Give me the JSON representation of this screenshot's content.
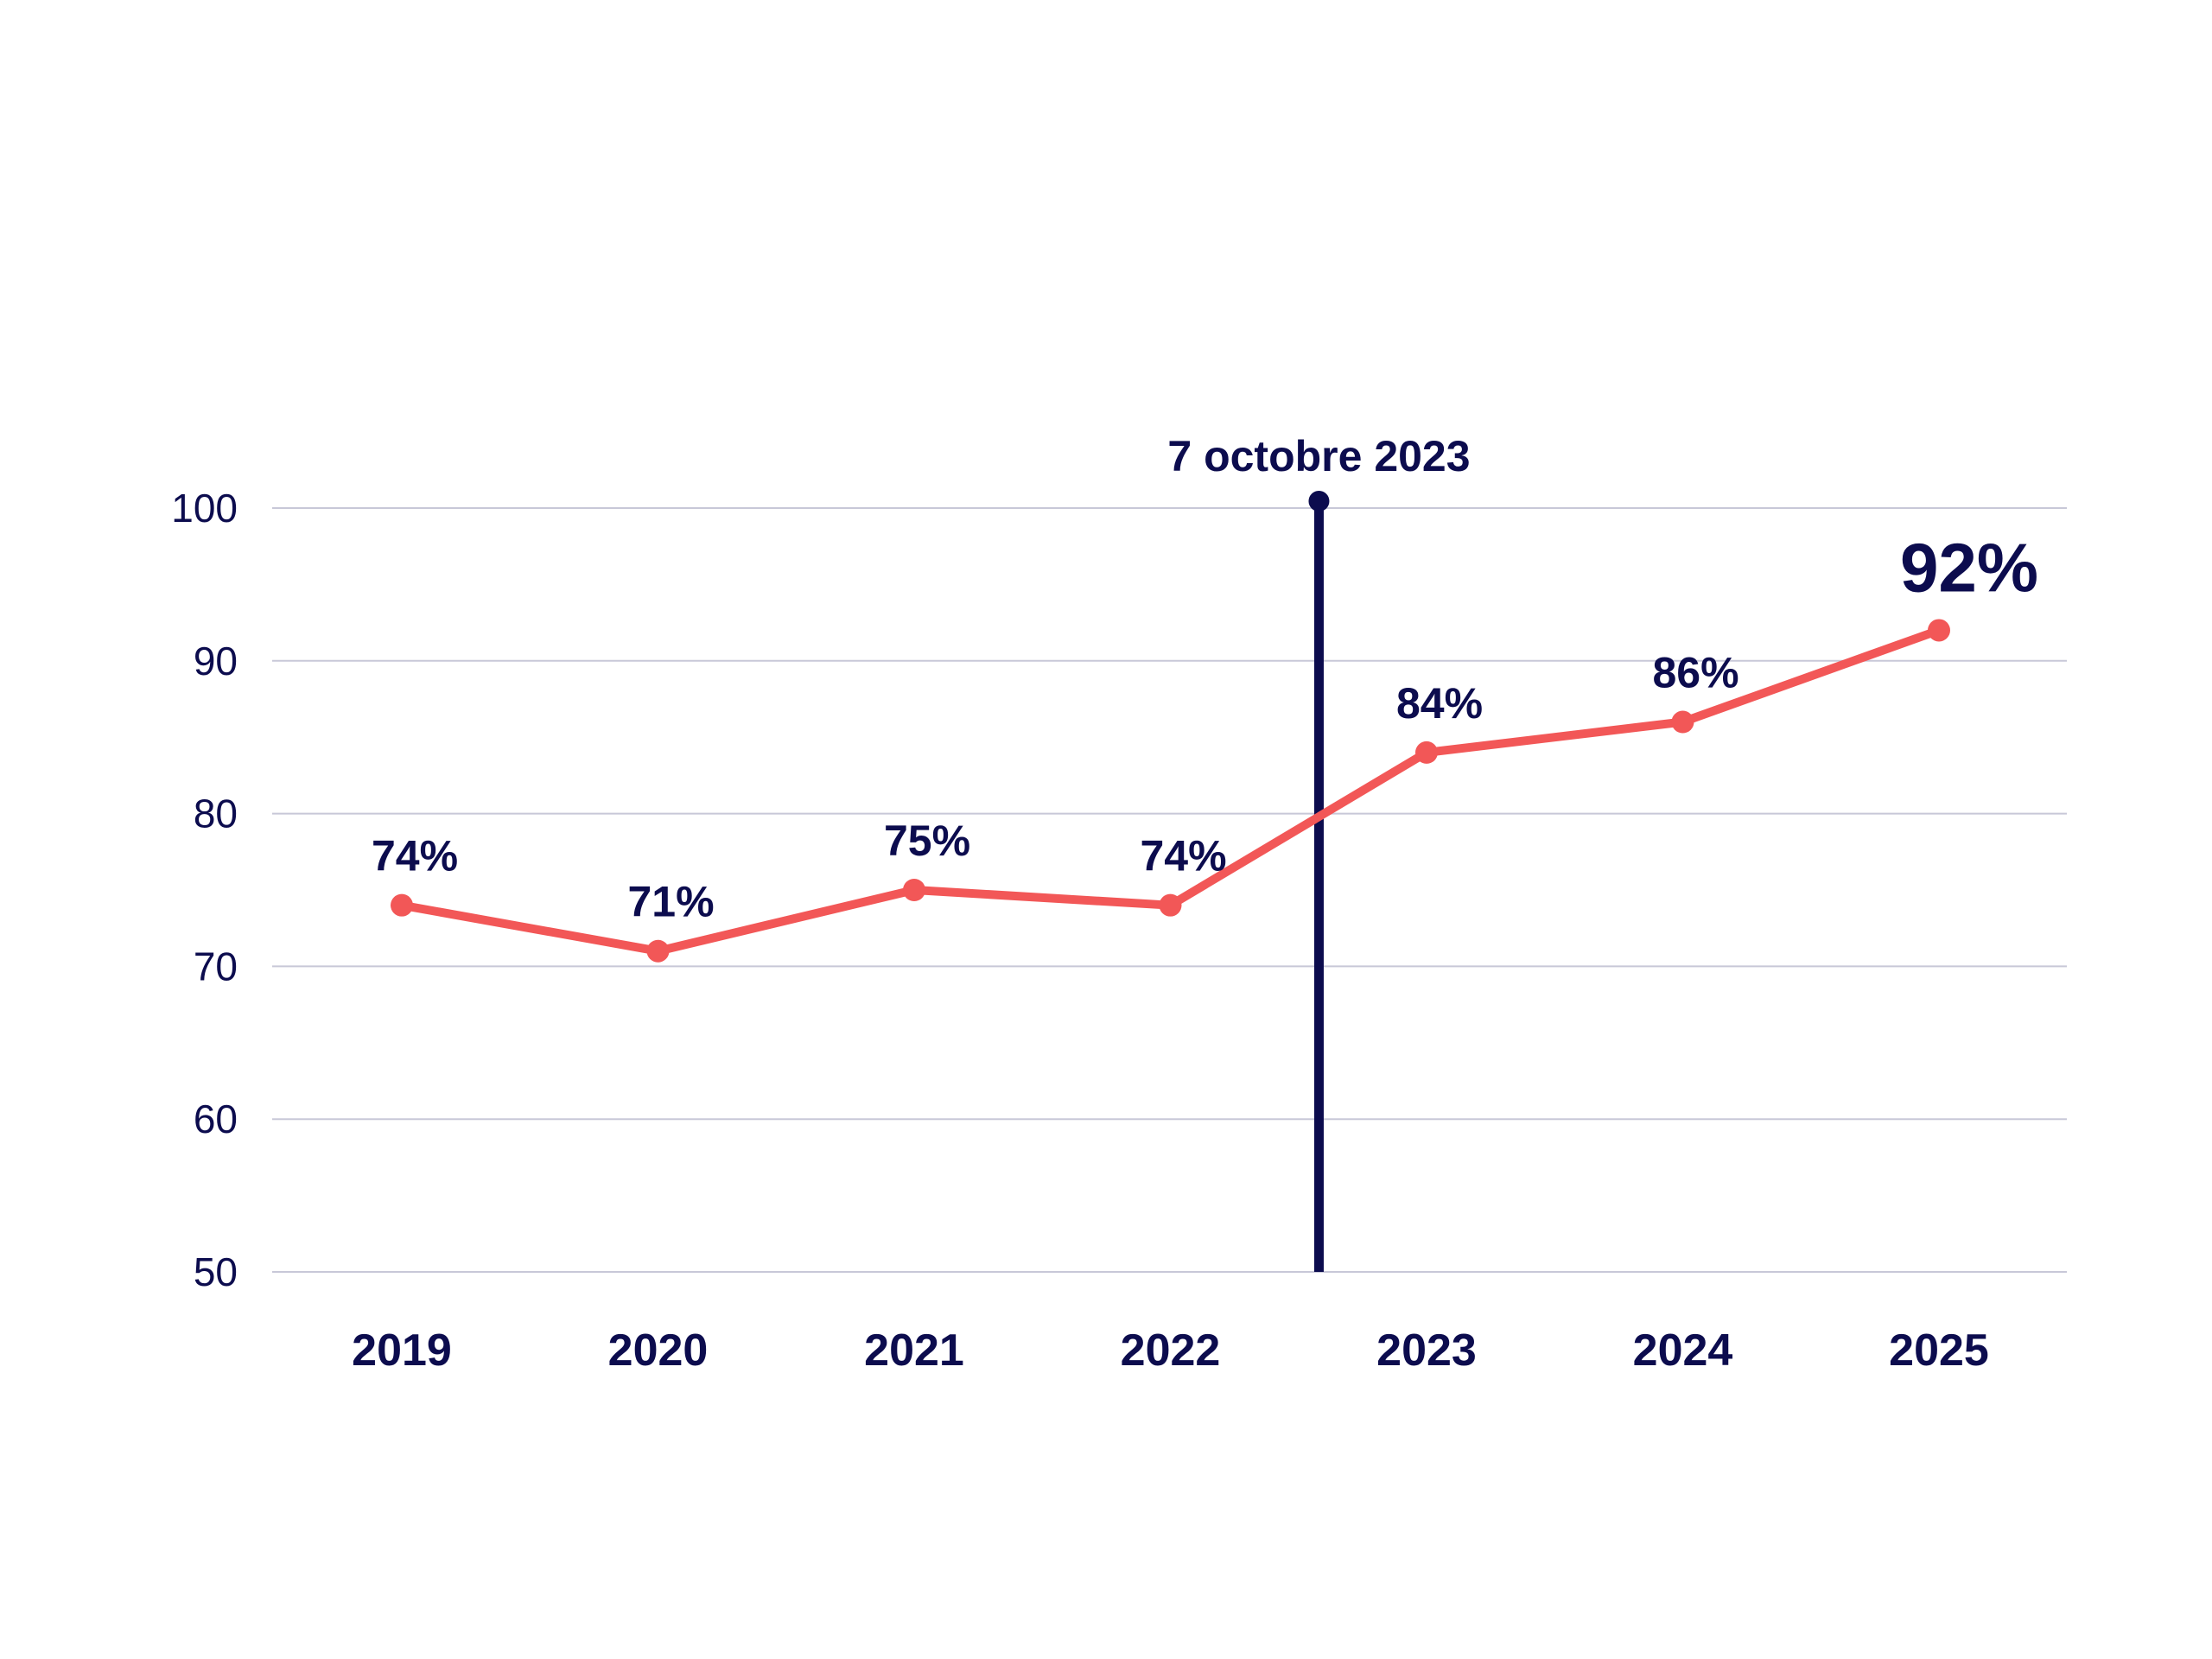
{
  "chart_data": {
    "type": "line",
    "title": "",
    "xlabel": "",
    "ylabel": "",
    "categories": [
      "2019",
      "2020",
      "2021",
      "2022",
      "2023",
      "2024",
      "2025"
    ],
    "series": [
      {
        "values": [
          74,
          71,
          75,
          74,
          84,
          86,
          92
        ],
        "data_labels": [
          "74%",
          "71%",
          "75%",
          "74%",
          "84%",
          "86%",
          "92%"
        ],
        "color": "#f25757"
      }
    ],
    "ylim": [
      50,
      100
    ],
    "yticks": [
      "50",
      "60",
      "70",
      "80",
      "90",
      "100"
    ],
    "grid": true,
    "legend": "none",
    "annotation": {
      "text": "7 octobre 2023",
      "position": "between 2022 and 2023",
      "color": "#0c0c4e"
    },
    "highlight_last_label": true,
    "colors": {
      "line": "#f25757",
      "text": "#0c0c4e",
      "grid": "#c8c8d8"
    }
  }
}
